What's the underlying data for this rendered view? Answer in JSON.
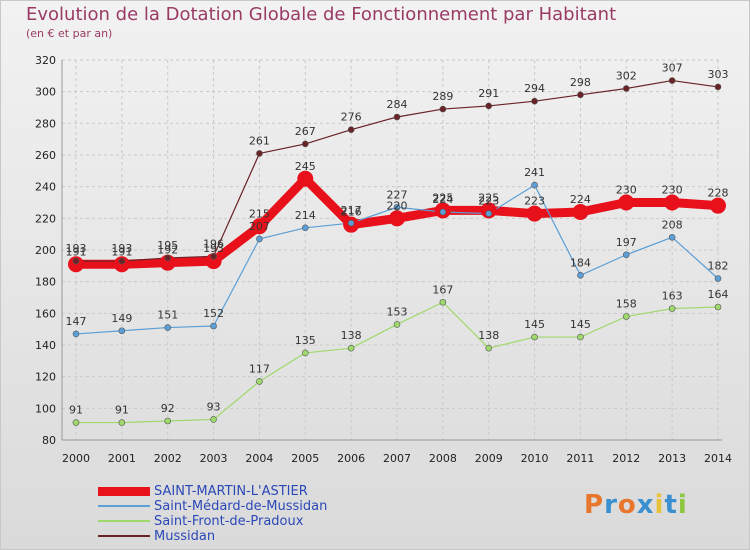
{
  "title": "Evolution de la Dotation Globale de Fonctionnement par Habitant",
  "subtitle": "(en € et par an)",
  "logo": {
    "text": "Proxiti",
    "colors": [
      "#e8762d",
      "#3a8fd0",
      "#e8762d",
      "#3a8fd0",
      "#e8c23a",
      "#3a8fd0",
      "#8dc63f"
    ]
  },
  "chart_data": {
    "type": "line",
    "title": "Evolution de la Dotation Globale de Fonctionnement par Habitant",
    "subtitle": "(en € et par an)",
    "xlabel": "",
    "ylabel": "",
    "x": [
      "2000",
      "2001",
      "2002",
      "2003",
      "2004",
      "2005",
      "2006",
      "2007",
      "2008",
      "2009",
      "2010",
      "2011",
      "2012",
      "2013",
      "2014"
    ],
    "ylim": [
      80,
      320
    ],
    "yticks": [
      80,
      100,
      120,
      140,
      160,
      180,
      200,
      220,
      240,
      260,
      280,
      300,
      320
    ],
    "grid": true,
    "legend_position": "bottom-left",
    "series": [
      {
        "name": "SAINT-MARTIN-L'ASTIER",
        "color": "#e8101a",
        "width": 9,
        "marker": 8,
        "values": [
          191,
          191,
          192,
          193,
          215,
          245,
          216,
          220,
          225,
          225,
          223,
          224,
          230,
          230,
          228
        ]
      },
      {
        "name": "Saint-Médard-de-Mussidan",
        "color": "#5b9fd6",
        "width": 1.2,
        "marker": 3,
        "values": [
          147,
          149,
          151,
          152,
          207,
          214,
          217,
          227,
          224,
          223,
          241,
          184,
          197,
          208,
          182
        ]
      },
      {
        "name": "Saint-Front-de-Pradoux",
        "color": "#9fd86b",
        "width": 1.2,
        "marker": 3,
        "values": [
          91,
          91,
          92,
          93,
          117,
          135,
          138,
          153,
          167,
          138,
          145,
          145,
          158,
          163,
          164
        ]
      },
      {
        "name": "Mussidan",
        "color": "#6a2326",
        "width": 1.2,
        "marker": 3,
        "values": [
          193,
          193,
          195,
          196,
          261,
          267,
          276,
          284,
          289,
          291,
          294,
          298,
          302,
          307,
          303
        ]
      }
    ]
  }
}
